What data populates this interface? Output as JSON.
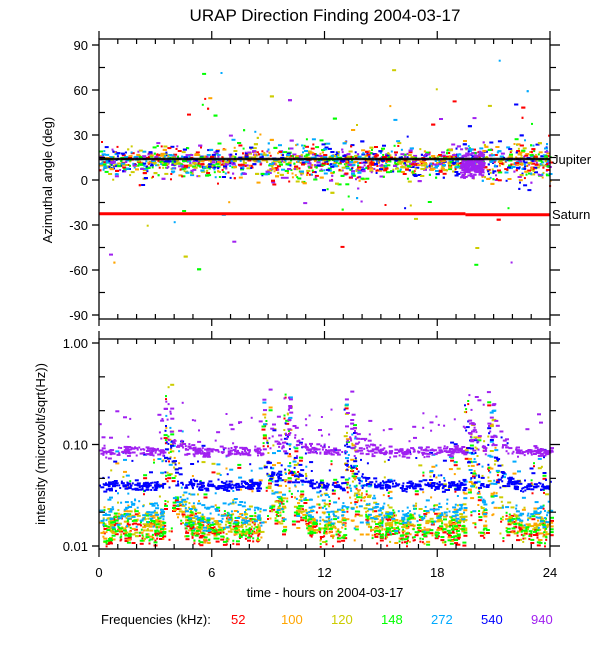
{
  "chart_data": [
    {
      "type": "scatter",
      "title": "URAP Direction Finding  2004-03-17",
      "ylabel": "Azimuthal angle (deg)",
      "xlabel": "time - hours on 2004-03-17",
      "xlim": [
        0,
        24
      ],
      "ylim": [
        -95,
        95
      ],
      "yticks": [
        90,
        60,
        30,
        0,
        -30,
        -60,
        -90
      ],
      "ytick_labels": [
        "90",
        "60",
        "30",
        "0",
        "-30",
        "-60",
        "-90"
      ],
      "reference_lines": [
        {
          "name": "Jupiter",
          "label": "Jupiter",
          "color": "#000000",
          "value_deg": 14
        },
        {
          "name": "Saturn",
          "label": "Saturn",
          "color": "#ff0000",
          "value_deg": -22.5,
          "value_deg_after_19_5h": -23.2
        }
      ],
      "scatter_center_deg": 13,
      "scatter_spread_deg": 12
    },
    {
      "type": "scatter",
      "ylabel": "intensity (microvolt/sqrt(Hz))",
      "xlabel": "time - hours on 2004-03-17",
      "yscale": "log",
      "xlim": [
        0,
        24
      ],
      "ylim": [
        0.0095,
        1.05
      ],
      "yticks": [
        1.0,
        0.1,
        0.01
      ],
      "ytick_labels": [
        "1.00",
        "0.10",
        "0.01"
      ],
      "xticks": [
        0,
        6,
        12,
        18,
        24
      ],
      "xtick_labels": [
        "0",
        "6",
        "12",
        "18",
        "24"
      ],
      "series": [
        {
          "name": "52",
          "color": "#ff0000",
          "baseline": 0.014
        },
        {
          "name": "100",
          "color": "#ffa500",
          "baseline": 0.016
        },
        {
          "name": "120",
          "color": "#cccc00",
          "baseline": 0.017
        },
        {
          "name": "148",
          "color": "#00ff00",
          "baseline": 0.015
        },
        {
          "name": "272",
          "color": "#00aaff",
          "baseline": 0.021
        },
        {
          "name": "540",
          "color": "#0000ff",
          "baseline": 0.04
        },
        {
          "name": "940",
          "color": "#a020f0",
          "baseline": 0.087
        }
      ],
      "bursts_hours": [
        3.6,
        8.8,
        10.0,
        13.2,
        19.6,
        20.8
      ]
    }
  ],
  "legend": {
    "label": "Frequencies (kHz):",
    "items": [
      "52",
      "100",
      "120",
      "148",
      "272",
      "540",
      "940"
    ]
  }
}
